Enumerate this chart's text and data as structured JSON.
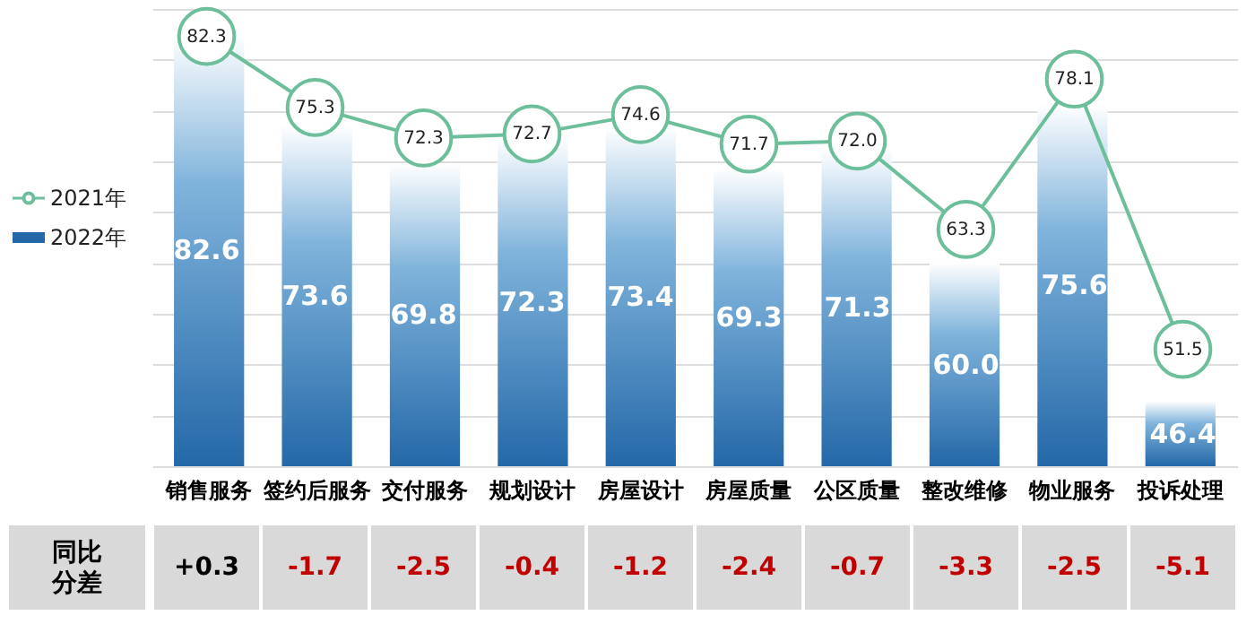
{
  "chart_data": {
    "type": "bar",
    "categories": [
      "销售服务",
      "签约后服务",
      "交付服务",
      "规划设计",
      "房屋设计",
      "房屋质量",
      "公区质量",
      "整改维修",
      "物业服务",
      "投诉处理"
    ],
    "series": [
      {
        "name": "2022年",
        "color": "#2468a8",
        "values": [
          82.6,
          73.6,
          69.8,
          72.3,
          73.4,
          69.3,
          71.3,
          60.0,
          75.6,
          46.4
        ],
        "value_labels": [
          "82.6",
          "73.6",
          "69.8",
          "72.3",
          "73.4",
          "69.3",
          "71.3",
          "60.0",
          "75.6",
          "46.4"
        ]
      },
      {
        "name": "2021年",
        "type": "line",
        "color": "#6cbf9a",
        "marker": "circle",
        "values": [
          82.3,
          75.3,
          72.3,
          72.7,
          74.6,
          71.7,
          72.0,
          63.3,
          78.1,
          51.5
        ],
        "value_labels": [
          "82.3",
          "75.3",
          "72.3",
          "72.7",
          "74.6",
          "71.7",
          "72.0",
          "63.3",
          "78.1",
          "51.5"
        ]
      }
    ],
    "ylim": [
      40,
      85
    ],
    "yticks": [
      {
        "value": 40,
        "label": null
      },
      {
        "value": 45,
        "label": null
      },
      {
        "value": 50,
        "label": null
      },
      {
        "value": 55,
        "label": null
      },
      {
        "value": 60,
        "label": null
      },
      {
        "value": 65,
        "label": null
      },
      {
        "value": 70,
        "label": null
      },
      {
        "value": 75,
        "label": null
      },
      {
        "value": 80,
        "label": null
      },
      {
        "value": 85,
        "label": null
      }
    ],
    "grid": "y",
    "tick_labels": "x",
    "legend": "left",
    "annotations": [
      "同比分差",
      "+0.3",
      "-1.7",
      "-2.5",
      "-0.4",
      "-1.2",
      "-2.4",
      "-0.7",
      "-3.3",
      "-2.5",
      "-5.1"
    ]
  }
}
